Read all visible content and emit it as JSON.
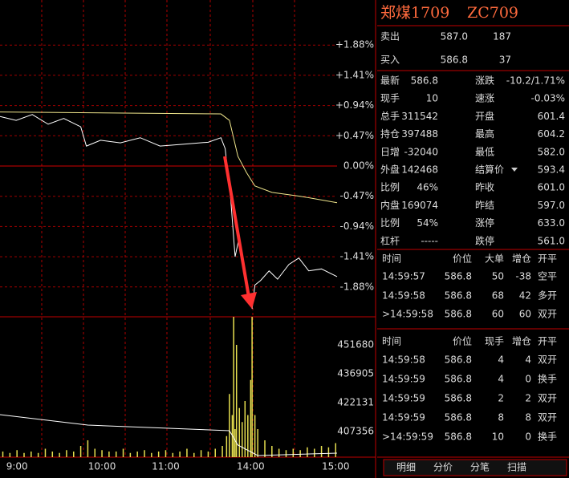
{
  "chart": {
    "price": {
      "xlim": [
        -12,
        226
      ],
      "ylim": [
        -2.344,
        2.581
      ],
      "yticks": [
        {
          "value": 1.88,
          "label": "+1.88%"
        },
        {
          "value": 1.41,
          "label": "+1.41%"
        },
        {
          "value": 0.94,
          "label": "+0.94%"
        },
        {
          "value": 0.47,
          "label": "+0.47%"
        },
        {
          "value": 0,
          "label": "0.00%"
        },
        {
          "value": -0.47,
          "label": "-0.47%"
        },
        {
          "value": -0.94,
          "label": "-0.94%"
        },
        {
          "value": -1.41,
          "label": "-1.41%"
        },
        {
          "value": -1.88,
          "label": "-1.88%"
        }
      ],
      "xticks": [
        {
          "value": 0,
          "label": "9:00"
        },
        {
          "value": 60,
          "label": "10:00"
        },
        {
          "value": 105,
          "label": "11:00"
        },
        {
          "value": 165,
          "label": "14:00"
        },
        {
          "value": 225,
          "label": "15:00"
        }
      ],
      "series": [
        {
          "color": "#ffffff",
          "x": [
            -12,
            -0.6,
            10.8,
            22,
            33,
            45,
            49,
            59,
            73,
            87,
            101,
            118,
            135,
            144,
            147,
            151,
            154,
            157,
            160,
            164,
            166,
            168,
            172,
            178,
            184,
            192,
            199,
            206,
            215,
            226
          ],
          "values": [
            0.77,
            0.71,
            0.8,
            0.65,
            0.74,
            0.61,
            0.31,
            0.4,
            0.36,
            0.44,
            0.31,
            0.34,
            0.37,
            0.44,
            0.27,
            -0.54,
            -1.41,
            -1.1,
            -1.66,
            -2.03,
            -2.22,
            -1.85,
            -1.78,
            -1.63,
            -1.76,
            -1.53,
            -1.43,
            -1.63,
            -1.6,
            -1.72
          ]
        },
        {
          "color": "#f0e68c",
          "x": [
            -12,
            144,
            150,
            156,
            162,
            168,
            180,
            200,
            226
          ],
          "values": [
            0.84,
            0.81,
            0.71,
            0.15,
            -0.1,
            -0.31,
            -0.41,
            -0.47,
            -0.57
          ]
        }
      ]
    },
    "volume": {
      "ylim": [
        394223,
        466044
      ],
      "yticks": [
        451680,
        436905,
        422131,
        407356
      ],
      "holding": {
        "color": "#ffffff",
        "x": [
          -12,
          50,
          150,
          156,
          170,
          226
        ],
        "values": [
          415974,
          410639,
          407766,
          400379,
          395043,
          396274
        ]
      },
      "bars": {
        "color": "#e8e050",
        "vlim": [
          0,
          100
        ],
        "x": [
          -10,
          -5,
          0,
          5,
          10,
          15,
          20,
          25,
          30,
          35,
          40,
          45,
          50,
          55,
          60,
          65,
          70,
          75,
          80,
          85,
          90,
          95,
          100,
          105,
          110,
          115,
          120,
          125,
          130,
          135,
          140,
          145,
          148,
          150,
          152,
          153,
          154,
          155,
          157,
          159,
          161,
          163,
          165,
          166,
          168,
          170,
          175,
          180,
          185,
          190,
          195,
          200,
          205,
          210,
          215,
          220,
          225
        ],
        "values": [
          4,
          3,
          5,
          3,
          4,
          3,
          6,
          4,
          3,
          5,
          4,
          8,
          12,
          6,
          5,
          4,
          4,
          6,
          3,
          4,
          5,
          3,
          4,
          5,
          3,
          4,
          6,
          3,
          5,
          4,
          6,
          8,
          15,
          45,
          30,
          100,
          20,
          80,
          35,
          25,
          40,
          30,
          55,
          100,
          30,
          20,
          12,
          8,
          6,
          5,
          6,
          5,
          7,
          6,
          8,
          7,
          10
        ]
      }
    }
  },
  "header": {
    "name": "郑煤1709",
    "code": "ZC709"
  },
  "quote": [
    {
      "label": "卖出",
      "price": "587.0",
      "qty": "187"
    },
    {
      "label": "买入",
      "price": "586.8",
      "qty": "37"
    }
  ],
  "stats": [
    [
      "最新",
      "586.8",
      "涨跌",
      "-10.2/1.71%"
    ],
    [
      "现手",
      "10",
      "速涨",
      "-0.03%"
    ],
    [
      "总手",
      "311542",
      "开盘",
      "601.4"
    ],
    [
      "持仓",
      "397488",
      "最高",
      "604.2"
    ],
    [
      "日增",
      "-32040",
      "最低",
      "582.0"
    ],
    [
      "外盘",
      "142468",
      "结算价",
      "593.4"
    ],
    [
      "比例",
      "46%",
      "昨收",
      "601.0"
    ],
    [
      "内盘",
      "169074",
      "昨结",
      "597.0"
    ],
    [
      "比例",
      "54%",
      "涨停",
      "633.0"
    ],
    [
      "杠杆",
      "-----",
      "跌停",
      "561.0"
    ]
  ],
  "trades": {
    "header": [
      "时间",
      "价位",
      "大单",
      "增仓",
      "开平"
    ],
    "rows": [
      [
        "14:59:57",
        "586.8",
        "50",
        "-38",
        "空平"
      ],
      [
        "14:59:58",
        "586.8",
        "68",
        "42",
        "多开"
      ],
      [
        ">14:59:58",
        "586.8",
        "60",
        "60",
        "双开"
      ]
    ]
  },
  "ticks": {
    "header": [
      "时间",
      "价位",
      "现手",
      "增仓",
      "开平"
    ],
    "rows": [
      [
        "14:59:58",
        "586.8",
        "4",
        "4",
        "双开"
      ],
      [
        "14:59:59",
        "586.8",
        "4",
        "0",
        "换手"
      ],
      [
        "14:59:59",
        "586.8",
        "2",
        "2",
        "双开"
      ],
      [
        "14:59:59",
        "586.8",
        "8",
        "8",
        "双开"
      ],
      [
        ">14:59:59",
        "586.8",
        "10",
        "0",
        "换手"
      ]
    ]
  },
  "tabs": [
    "明细",
    "分价",
    "分笔",
    "扫描"
  ]
}
